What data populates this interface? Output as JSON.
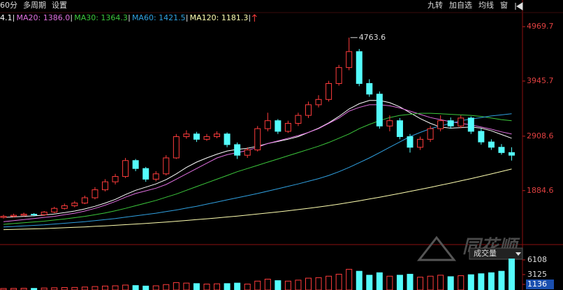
{
  "chart_data": {
    "type": "candlestick",
    "tabs": [
      "60分",
      "多周期",
      "设置"
    ],
    "toolbar": [
      "九转",
      "加自选",
      "均线",
      "窗"
    ],
    "watermark": "同花顺",
    "volume_label": "成交量",
    "ylim": [
      869,
      5471
    ],
    "yticks": [
      4969.7,
      3945.7,
      2908.6,
      1884.6
    ],
    "max_label": 4763.6,
    "ohlc": [
      [
        1380,
        1430,
        1360,
        1400
      ],
      [
        1400,
        1450,
        1380,
        1420
      ],
      [
        1420,
        1470,
        1400,
        1440
      ],
      [
        1440,
        1460,
        1400,
        1430
      ],
      [
        1430,
        1500,
        1410,
        1480
      ],
      [
        1480,
        1580,
        1460,
        1550
      ],
      [
        1550,
        1640,
        1530,
        1600
      ],
      [
        1600,
        1690,
        1570,
        1650
      ],
      [
        1650,
        1790,
        1630,
        1750
      ],
      [
        1750,
        1950,
        1720,
        1900
      ],
      [
        1900,
        2100,
        1870,
        2050
      ],
      [
        2050,
        2200,
        2000,
        2150
      ],
      [
        2150,
        2500,
        2120,
        2450
      ],
      [
        2450,
        2480,
        2250,
        2300
      ],
      [
        2300,
        2330,
        2050,
        2100
      ],
      [
        2100,
        2250,
        2060,
        2200
      ],
      [
        2200,
        2550,
        2170,
        2500
      ],
      [
        2500,
        2950,
        2480,
        2900
      ],
      [
        2900,
        3020,
        2860,
        2950
      ],
      [
        2950,
        2990,
        2800,
        2850
      ],
      [
        2850,
        2950,
        2820,
        2900
      ],
      [
        2900,
        3000,
        2870,
        2950
      ],
      [
        2950,
        2980,
        2700,
        2750
      ],
      [
        2750,
        2790,
        2480,
        2550
      ],
      [
        2550,
        2700,
        2500,
        2650
      ],
      [
        2650,
        3100,
        2620,
        3050
      ],
      [
        3050,
        3350,
        3000,
        3200
      ],
      [
        3200,
        3230,
        2950,
        3000
      ],
      [
        3000,
        3200,
        2970,
        3150
      ],
      [
        3150,
        3350,
        3100,
        3300
      ],
      [
        3300,
        3560,
        3250,
        3500
      ],
      [
        3500,
        3680,
        3450,
        3600
      ],
      [
        3600,
        3950,
        3560,
        3900
      ],
      [
        3900,
        4250,
        3860,
        4200
      ],
      [
        4200,
        4763.6,
        4150,
        4500
      ],
      [
        4500,
        4550,
        3850,
        3900
      ],
      [
        3900,
        3980,
        3650,
        3700
      ],
      [
        3700,
        3750,
        3050,
        3100
      ],
      [
        3100,
        3300,
        3000,
        3200
      ],
      [
        3200,
        3250,
        2850,
        2900
      ],
      [
        2900,
        2950,
        2600,
        2700
      ],
      [
        2700,
        2900,
        2650,
        2850
      ],
      [
        2850,
        3100,
        2800,
        3050
      ],
      [
        3050,
        3300,
        3000,
        3200
      ],
      [
        3200,
        3260,
        3050,
        3100
      ],
      [
        3100,
        3300,
        3060,
        3250
      ],
      [
        3250,
        3280,
        2950,
        3000
      ],
      [
        3000,
        3050,
        2750,
        2800
      ],
      [
        2800,
        2850,
        2650,
        2700
      ],
      [
        2700,
        2760,
        2560,
        2600
      ],
      [
        2600,
        2700,
        2450,
        2550
      ]
    ],
    "up_color": "#ff3c3c",
    "down_color": "#54fcfc",
    "series": [
      {
        "name": "4.1",
        "color": "#ffffff",
        "values": [
          1380,
          1390,
          1400,
          1410,
          1425,
          1445,
          1470,
          1500,
          1540,
          1590,
          1650,
          1720,
          1810,
          1890,
          1950,
          2010,
          2090,
          2200,
          2320,
          2420,
          2500,
          2570,
          2630,
          2660,
          2680,
          2720,
          2770,
          2810,
          2850,
          2900,
          2980,
          3060,
          3160,
          3280,
          3420,
          3520,
          3580,
          3580,
          3540,
          3460,
          3350,
          3240,
          3150,
          3080,
          3060,
          3070,
          3080,
          3060,
          3010,
          2940,
          2870
        ]
      },
      {
        "name": "MA20: 1386.0",
        "color": "#e070e0",
        "values": [
          1300,
          1320,
          1340,
          1360,
          1380,
          1400,
          1430,
          1460,
          1500,
          1550,
          1610,
          1680,
          1760,
          1830,
          1880,
          1930,
          2000,
          2100,
          2200,
          2300,
          2400,
          2500,
          2560,
          2600,
          2640,
          2700,
          2770,
          2820,
          2870,
          2920,
          2980,
          3050,
          3150,
          3250,
          3380,
          3450,
          3500,
          3500,
          3480,
          3440,
          3380,
          3320,
          3260,
          3220,
          3180,
          3150,
          3120,
          3080,
          3040,
          2990,
          2950
        ]
      },
      {
        "name": "MA30: 1364.3",
        "color": "#3cc83c",
        "values": [
          1250,
          1265,
          1280,
          1295,
          1310,
          1330,
          1350,
          1375,
          1400,
          1430,
          1465,
          1505,
          1550,
          1600,
          1650,
          1700,
          1760,
          1820,
          1890,
          1960,
          2030,
          2100,
          2170,
          2240,
          2300,
          2360,
          2420,
          2480,
          2540,
          2600,
          2660,
          2720,
          2790,
          2870,
          2950,
          3050,
          3130,
          3200,
          3260,
          3300,
          3320,
          3340,
          3340,
          3330,
          3320,
          3310,
          3300,
          3280,
          3250,
          3220,
          3200
        ]
      },
      {
        "name": "MA60: 1421.5",
        "color": "#30a0e0",
        "values": [
          1200,
          1210,
          1220,
          1230,
          1240,
          1255,
          1270,
          1285,
          1300,
          1320,
          1340,
          1360,
          1385,
          1410,
          1435,
          1460,
          1490,
          1520,
          1555,
          1590,
          1630,
          1670,
          1710,
          1750,
          1790,
          1830,
          1875,
          1920,
          1965,
          2010,
          2060,
          2110,
          2170,
          2240,
          2320,
          2410,
          2500,
          2600,
          2700,
          2800,
          2900,
          2980,
          3050,
          3100,
          3150,
          3200,
          3230,
          3260,
          3290,
          3310,
          3330
        ]
      },
      {
        "name": "MA120: 1181.3",
        "color": "#ffffb0",
        "values": [
          1150,
          1155,
          1160,
          1165,
          1170,
          1178,
          1186,
          1194,
          1202,
          1212,
          1222,
          1232,
          1244,
          1256,
          1268,
          1280,
          1294,
          1308,
          1322,
          1338,
          1354,
          1370,
          1388,
          1406,
          1424,
          1444,
          1464,
          1484,
          1506,
          1528,
          1552,
          1576,
          1602,
          1630,
          1660,
          1692,
          1726,
          1760,
          1796,
          1832,
          1870,
          1908,
          1946,
          1986,
          2026,
          2068,
          2110,
          2154,
          2198,
          2244,
          2290
        ]
      }
    ],
    "volume": [
      300,
      320,
      350,
      330,
      400,
      450,
      500,
      520,
      600,
      700,
      800,
      850,
      1000,
      900,
      800,
      850,
      1100,
      1500,
      1400,
      1300,
      1200,
      1250,
      1300,
      1400,
      1200,
      1800,
      2200,
      1900,
      1800,
      2000,
      2400,
      2500,
      2800,
      3200,
      4200,
      3800,
      3000,
      3500,
      2800,
      3000,
      3200,
      2600,
      2800,
      3000,
      2700,
      2900,
      3100,
      3300,
      3500,
      3800,
      6300
    ],
    "vylim": [
      0,
      8500
    ],
    "vyticks": [
      6108,
      3125,
      1136
    ]
  }
}
